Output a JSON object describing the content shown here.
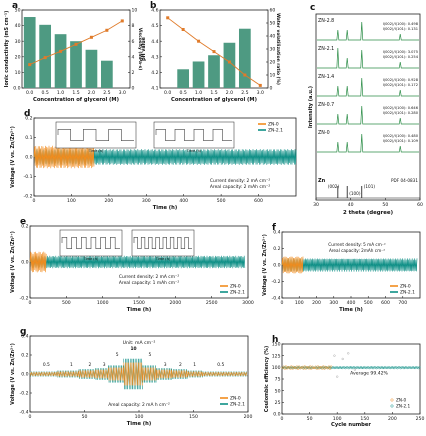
{
  "colors": {
    "bar": "#4e9a82",
    "line": "#e07b2a",
    "zn0": "#f28c1e",
    "zn21": "#0e8f86",
    "xrd": "#2f8f4a",
    "axis": "#222"
  },
  "chart_data": [
    {
      "panel": "a",
      "type": "bar",
      "categories": [
        "0.0",
        "0.5",
        "1.0",
        "1.5",
        "2.0",
        "2.5",
        "3.0"
      ],
      "values": [
        45.5,
        40.5,
        34.5,
        30,
        24.5,
        17.5
      ],
      "line_values": [
        3.0,
        3.9,
        4.7,
        5.6,
        6.5,
        7.4,
        8.6
      ],
      "x": [
        0.0,
        0.5,
        1.0,
        1.5,
        2.0,
        2.5
      ],
      "xlabel": "Concentration of glycerol (M)",
      "ylabel": "Ionic conductivity (mS cm⁻¹)",
      "ylabel2": "Viscosity (mPa·s)",
      "ylim": [
        0,
        50
      ],
      "y2lim": [
        0,
        10
      ],
      "yticks": [
        0,
        10,
        20,
        30,
        40,
        50
      ],
      "y2ticks": [
        0,
        2,
        4,
        6,
        8,
        10
      ]
    },
    {
      "panel": "b",
      "type": "bar",
      "categories": [
        "0.0",
        "0.5",
        "1.0",
        "1.5",
        "2.0",
        "2.5",
        "3.0"
      ],
      "values": [
        4.22,
        4.27,
        4.31,
        4.39,
        4.48
      ],
      "line_values": [
        54,
        45,
        36,
        28,
        20,
        10,
        2
      ],
      "x": [
        0.5,
        1.0,
        1.5,
        2.0,
        2.5
      ],
      "xlabel": "Concentration of glycerol (M)",
      "ylabel": "pH value",
      "ylabel2": "Water volatilization ratio (%)",
      "ylim": [
        4.1,
        4.6
      ],
      "y2lim": [
        0,
        60
      ],
      "yticks": [
        4.1,
        4.2,
        4.3,
        4.4,
        4.5,
        4.6
      ],
      "y2ticks": [
        0,
        10,
        20,
        30,
        40,
        50,
        60
      ]
    },
    {
      "panel": "c",
      "type": "line",
      "xlabel": "2 theta (degree)",
      "ylabel": "Intensity (a.u.)",
      "xlim": [
        30,
        60
      ],
      "xticks": [
        30,
        40,
        50,
        60
      ],
      "series": [
        {
          "name": "ZN-2.8",
          "ratio1": "I(002)/I(100): 0.498",
          "ratio2": "I(002)/I(101): 0.131"
        },
        {
          "name": "ZN-2.1",
          "ratio1": "I(002)/I(100): 3.075",
          "ratio2": "I(002)/I(101): 0.254"
        },
        {
          "name": "ZN-1.4",
          "ratio1": "I(002)/I(100): 0.928",
          "ratio2": "I(002)/I(101): 0.172"
        },
        {
          "name": "ZN-0.7",
          "ratio1": "I(002)/I(100): 0.646",
          "ratio2": "I(002)/I(101): 0.280"
        },
        {
          "name": "ZN-0",
          "ratio1": "I(002)/I(100): 0.480",
          "ratio2": "I(002)/I(101): 0.109"
        }
      ],
      "ref": {
        "name": "Zn",
        "pdf": "PDF 04-0831",
        "peaks": [
          {
            "label": "(002)",
            "x": 36.3
          },
          {
            "label": "(100)",
            "x": 39.0
          },
          {
            "label": "(101)",
            "x": 43.2
          }
        ]
      }
    },
    {
      "panel": "d",
      "type": "line",
      "xlabel": "Time (h)",
      "ylabel": "Voltage (V vs. Zn/Zn²⁺)",
      "xlim": [
        0,
        700
      ],
      "xticks": [
        0,
        100,
        200,
        300,
        400,
        500,
        600
      ],
      "ylim": [
        -0.2,
        0.2
      ],
      "yticks": [
        -0.2,
        -0.1,
        0.0,
        0.1,
        0.2
      ],
      "series": [
        {
          "name": "ZN-0",
          "end": 160
        },
        {
          "name": "ZN-2.1",
          "end": 700
        }
      ],
      "note1": "Current density: 2 mA cm⁻²",
      "note2": "Areal capacity: 2 mAh cm⁻²"
    },
    {
      "panel": "e",
      "type": "line",
      "xlabel": "Time (h)",
      "ylabel": "Voltage (V vs. Zn/Zn²⁺)",
      "xlim": [
        0,
        3000
      ],
      "xticks": [
        0,
        500,
        1000,
        1500,
        2000,
        2500,
        3000
      ],
      "ylim": [
        -0.2,
        0.2
      ],
      "yticks": [
        -0.2,
        0.0,
        0.2
      ],
      "series": [
        {
          "name": "ZN-0",
          "end": 220
        },
        {
          "name": "ZN-2.1",
          "end": 2950
        }
      ],
      "note1": "Current density: 2 mA cm⁻²",
      "note2": "Areal capacity: 1 mAh cm⁻²"
    },
    {
      "panel": "f",
      "type": "line",
      "xlabel": "Time (h)",
      "ylabel": "Voltage (V vs. Zn/Zn²⁺)",
      "xlim": [
        0,
        800
      ],
      "xticks": [
        0,
        100,
        200,
        300,
        400,
        500,
        600,
        700
      ],
      "ylim": [
        -0.4,
        0.4
      ],
      "yticks": [
        -0.4,
        -0.2,
        0.0,
        0.2,
        0.4
      ],
      "series": [
        {
          "name": "ZN-0",
          "end": 120
        },
        {
          "name": "ZN-2.1",
          "end": 780
        }
      ],
      "note1": "Current density: 5 mA cm⁻²",
      "note2": "Areal capacity: 2mAh cm⁻²"
    },
    {
      "panel": "g",
      "type": "line",
      "xlabel": "Time (h)",
      "ylabel": "Voltage (V vs. Zn/Zn²⁺)",
      "xlim": [
        0,
        200
      ],
      "xticks": [
        0,
        50,
        100,
        150,
        200
      ],
      "ylim": [
        -0.4,
        0.4
      ],
      "yticks": [
        -0.4,
        -0.2,
        0.0,
        0.2,
        0.4
      ],
      "series": [
        {
          "name": "ZN-0"
        },
        {
          "name": "ZN-2.1"
        }
      ],
      "unit": "Unit: mA cm⁻²",
      "rates": [
        {
          "label": "0.5",
          "x": 15
        },
        {
          "label": "1",
          "x": 38
        },
        {
          "label": "2",
          "x": 55
        },
        {
          "label": "3",
          "x": 68
        },
        {
          "label": "5",
          "x": 80
        },
        {
          "label": "10",
          "x": 95
        },
        {
          "label": "5",
          "x": 110
        },
        {
          "label": "3",
          "x": 124
        },
        {
          "label": "2",
          "x": 138
        },
        {
          "label": "1",
          "x": 151
        },
        {
          "label": "0.5",
          "x": 175
        }
      ],
      "note1": "Areal capacity: 2 mA h cm⁻²"
    },
    {
      "panel": "h",
      "type": "scatter",
      "xlabel": "Cycle number",
      "ylabel": "Coulombic efficiency (%)",
      "xlim": [
        0,
        250
      ],
      "xticks": [
        0,
        50,
        100,
        150,
        200,
        250
      ],
      "ylim": [
        0,
        150
      ],
      "yticks": [
        0,
        25,
        50,
        75,
        100,
        125,
        150
      ],
      "series": [
        {
          "name": "ZN-0",
          "end": 90
        },
        {
          "name": "ZN-2.1",
          "end": 250
        }
      ],
      "average": "Average 99.42%"
    }
  ],
  "labels": {
    "inset_xlabel": "Time (h)"
  }
}
